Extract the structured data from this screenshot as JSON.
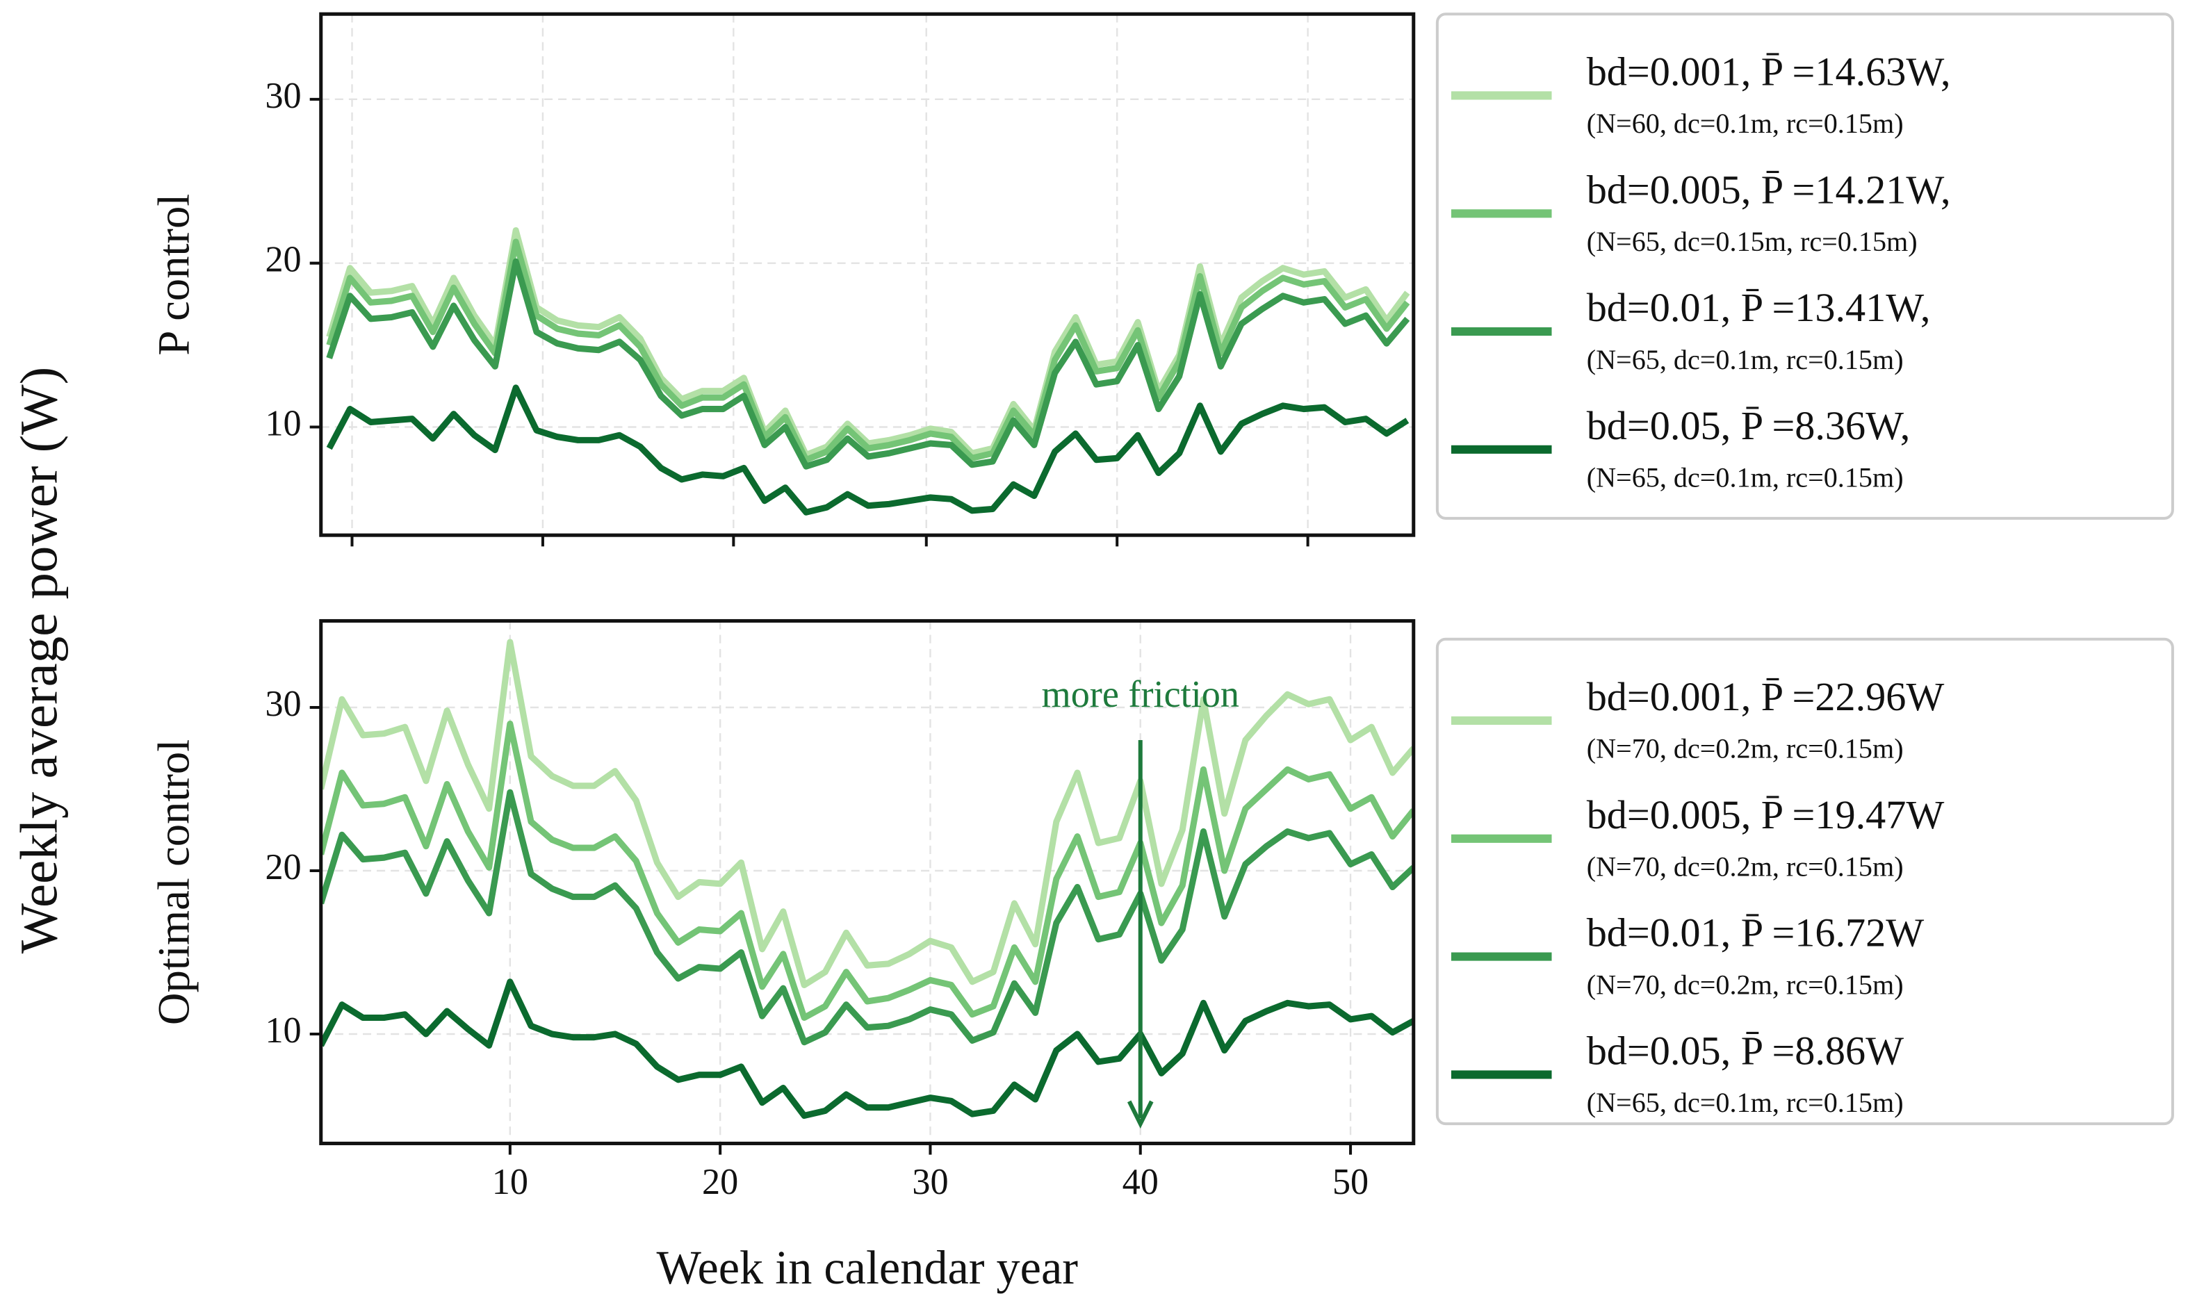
{
  "ylabel": "Weekly average power (W)",
  "chart_data": [
    {
      "type": "line",
      "ylabel": "P control",
      "x": [
        1,
        2,
        3,
        4,
        5,
        6,
        7,
        8,
        9,
        10,
        11,
        12,
        13,
        14,
        15,
        16,
        17,
        18,
        19,
        20,
        21,
        22,
        23,
        24,
        25,
        26,
        27,
        28,
        29,
        30,
        31,
        32,
        33,
        34,
        35,
        36,
        37,
        38,
        39,
        40,
        41,
        42,
        43,
        44,
        45,
        46,
        47,
        48,
        49,
        50,
        51,
        52,
        53
      ],
      "xlim": [
        0.6,
        53.3
      ],
      "xticks": [
        2.1,
        11.3,
        20.5,
        29.8,
        39,
        48.2
      ],
      "ylim": [
        3.4,
        35.2
      ],
      "yticks": [
        10,
        20,
        30
      ],
      "grid": true,
      "series": [
        {
          "name": "bd=0.001, P̄ =14.63W,",
          "legend_detail": "(N=60, dc=0.1m, rc=0.15m)",
          "color": "#b3e0a6",
          "values": [
            15.5,
            19.7,
            18.2,
            18.3,
            18.6,
            16.3,
            19.1,
            16.8,
            15,
            22,
            17.3,
            16.5,
            16.2,
            16.1,
            16.7,
            15.4,
            13,
            11.7,
            12.2,
            12.2,
            13,
            9.7,
            11,
            8.3,
            8.8,
            10.2,
            9,
            9.2,
            9.5,
            9.9,
            9.7,
            8.4,
            8.7,
            11.4,
            9.8,
            14.6,
            16.7,
            13.8,
            14,
            16.4,
            12.2,
            14.4,
            19.8,
            15,
            17.9,
            18.9,
            19.7,
            19.3,
            19.5,
            17.9,
            18.4,
            16.5,
            18.2
          ]
        },
        {
          "name": "bd=0.005, P̄ =14.21W,",
          "legend_detail": "(N=65, dc=0.15m, rc=0.15m)",
          "color": "#74c476",
          "values": [
            15,
            19.1,
            17.6,
            17.7,
            18,
            15.8,
            18.5,
            16.3,
            14.5,
            21.3,
            16.8,
            16,
            15.7,
            15.6,
            16.2,
            14.9,
            12.6,
            11.3,
            11.8,
            11.8,
            12.6,
            9.4,
            10.6,
            8,
            8.5,
            9.9,
            8.7,
            8.9,
            9.2,
            9.6,
            9.4,
            8.1,
            8.4,
            11,
            9.5,
            14.1,
            16.2,
            13.4,
            13.6,
            15.9,
            11.8,
            14,
            19.2,
            14.5,
            17.3,
            18.3,
            19.1,
            18.7,
            18.9,
            17.3,
            17.8,
            16,
            17.6
          ]
        },
        {
          "name": "bd=0.01, P̄ =13.41W,",
          "legend_detail": "(N=65, dc=0.1m, rc=0.15m)",
          "color": "#3a9a50",
          "values": [
            14.2,
            18,
            16.6,
            16.7,
            17,
            14.9,
            17.4,
            15.3,
            13.7,
            20.1,
            15.8,
            15.1,
            14.8,
            14.7,
            15.2,
            14.1,
            11.9,
            10.7,
            11.1,
            11.1,
            11.9,
            8.9,
            10,
            7.6,
            8,
            9.3,
            8.2,
            8.4,
            8.7,
            9,
            8.9,
            7.7,
            7.9,
            10.4,
            8.9,
            13.3,
            15.2,
            12.6,
            12.8,
            15,
            11.1,
            13.1,
            18.1,
            13.7,
            16.3,
            17.2,
            18,
            17.6,
            17.8,
            16.3,
            16.8,
            15.1,
            16.6
          ]
        },
        {
          "name": "bd=0.05, P̄ =8.36W,",
          "legend_detail": "(N=65, dc=0.1m, rc=0.15m)",
          "color": "#0b6a2e",
          "values": [
            8.7,
            11.1,
            10.3,
            10.4,
            10.5,
            9.3,
            10.8,
            9.5,
            8.6,
            12.4,
            9.8,
            9.4,
            9.2,
            9.2,
            9.5,
            8.8,
            7.5,
            6.8,
            7.1,
            7,
            7.5,
            5.5,
            6.3,
            4.8,
            5.1,
            5.9,
            5.2,
            5.3,
            5.5,
            5.7,
            5.6,
            4.9,
            5,
            6.5,
            5.8,
            8.5,
            9.6,
            8,
            8.1,
            9.5,
            7.2,
            8.4,
            11.3,
            8.5,
            10.2,
            10.8,
            11.3,
            11.1,
            11.2,
            10.3,
            10.5,
            9.6,
            10.4
          ]
        }
      ]
    },
    {
      "type": "line",
      "ylabel": "Optimal control",
      "xlabel": "Week in calendar year",
      "x": [
        1,
        2,
        3,
        4,
        5,
        6,
        7,
        8,
        9,
        10,
        11,
        12,
        13,
        14,
        15,
        16,
        17,
        18,
        19,
        20,
        21,
        22,
        23,
        24,
        25,
        26,
        27,
        28,
        29,
        30,
        31,
        32,
        33,
        34,
        35,
        36,
        37,
        38,
        39,
        40,
        41,
        42,
        43,
        44,
        45,
        46,
        47,
        48,
        49,
        50,
        51,
        52,
        53
      ],
      "xlim": [
        1,
        53
      ],
      "xticks": [
        10,
        20,
        30,
        40,
        50
      ],
      "ylim": [
        3.3,
        35.3
      ],
      "yticks": [
        10,
        20,
        30
      ],
      "grid": true,
      "annotation": {
        "text": "more friction",
        "x": 40,
        "y_from": 28,
        "y_to": 4.5
      },
      "series": [
        {
          "name": "bd=0.001, P̄ =22.96W",
          "legend_detail": "(N=70, dc=0.2m, rc=0.15m)",
          "color": "#b3e0a6",
          "values": [
            25,
            30.5,
            28.3,
            28.4,
            28.8,
            25.5,
            29.8,
            26.5,
            23.8,
            34,
            27,
            25.8,
            25.2,
            25.2,
            26.1,
            24.3,
            20.5,
            18.4,
            19.3,
            19.2,
            20.5,
            15.2,
            17.5,
            13,
            13.8,
            16.2,
            14.2,
            14.3,
            14.9,
            15.7,
            15.3,
            13.2,
            13.8,
            18,
            15.5,
            23,
            26,
            21.7,
            22,
            25.5,
            19.2,
            22.5,
            30.5,
            23.5,
            28,
            29.5,
            30.8,
            30.2,
            30.5,
            28,
            28.8,
            26,
            27.5
          ]
        },
        {
          "name": "bd=0.005, P̄ =19.47W",
          "legend_detail": "(N=70, dc=0.2m, rc=0.15m)",
          "color": "#74c476",
          "values": [
            21,
            26,
            24,
            24.1,
            24.5,
            21.5,
            25.3,
            22.4,
            20.2,
            29,
            23,
            21.9,
            21.4,
            21.4,
            22.1,
            20.6,
            17.4,
            15.6,
            16.4,
            16.3,
            17.4,
            12.9,
            14.9,
            11,
            11.7,
            13.8,
            12,
            12.2,
            12.7,
            13.3,
            13,
            11.2,
            11.7,
            15.3,
            13.2,
            19.5,
            22.1,
            18.4,
            18.7,
            21.7,
            16.8,
            19.1,
            26.2,
            20,
            23.8,
            25,
            26.2,
            25.6,
            25.9,
            23.8,
            24.5,
            22.1,
            23.7
          ]
        },
        {
          "name": "bd=0.01, P̄ =16.72W",
          "legend_detail": "(N=70, dc=0.2m, rc=0.15m)",
          "color": "#3a9a50",
          "values": [
            18,
            22.2,
            20.7,
            20.8,
            21.1,
            18.6,
            21.8,
            19.4,
            17.4,
            24.8,
            19.8,
            18.9,
            18.4,
            18.4,
            19.1,
            17.7,
            15,
            13.4,
            14.1,
            14,
            15,
            11.1,
            12.8,
            9.5,
            10.1,
            11.8,
            10.4,
            10.5,
            10.9,
            11.5,
            11.2,
            9.6,
            10.1,
            13.1,
            11.3,
            16.8,
            19,
            15.8,
            16.1,
            18.6,
            14.5,
            16.4,
            22.4,
            17.2,
            20.4,
            21.5,
            22.4,
            22,
            22.3,
            20.4,
            21,
            19,
            20.2
          ]
        },
        {
          "name": "bd=0.05, P̄ =8.86W",
          "legend_detail": "(N=65, dc=0.1m, rc=0.15m)",
          "color": "#0b6a2e",
          "values": [
            9.3,
            11.8,
            11,
            11,
            11.2,
            10,
            11.4,
            10.3,
            9.3,
            13.2,
            10.5,
            10,
            9.8,
            9.8,
            10,
            9.4,
            8,
            7.2,
            7.5,
            7.5,
            8,
            5.8,
            6.7,
            5,
            5.3,
            6.3,
            5.5,
            5.5,
            5.8,
            6.1,
            5.9,
            5.1,
            5.3,
            6.9,
            6,
            9,
            10,
            8.3,
            8.5,
            10,
            7.6,
            8.8,
            11.9,
            9,
            10.8,
            11.4,
            11.9,
            11.7,
            11.8,
            10.9,
            11.1,
            10.1,
            10.8
          ]
        }
      ]
    }
  ]
}
